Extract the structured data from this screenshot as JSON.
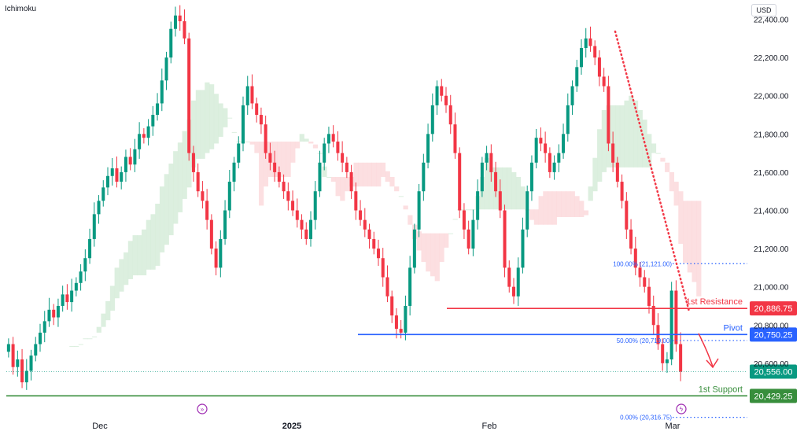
{
  "header": {
    "indicator": "Ichimoku",
    "currency": "USD"
  },
  "colors": {
    "up": "#089981",
    "down": "#f23645",
    "cloud_bull": "#d6ecd9",
    "cloud_bear": "#fbd9dc",
    "resistance": "#f23645",
    "pivot": "#2962ff",
    "support": "#388e3c",
    "fib": "#2962ff",
    "trend": "#f23645",
    "price": "#089981",
    "axis": "#131722"
  },
  "chart_data": {
    "type": "candlestick",
    "y_axis": {
      "min": 20270,
      "max": 22460,
      "ticks": [
        20600,
        20800,
        21000,
        21200,
        21400,
        21600,
        21800,
        22000,
        22200,
        22400
      ],
      "tick_labels": [
        "20,600.00",
        "20,800.00",
        "21,000.00",
        "21,200.00",
        "21,400.00",
        "21,600.00",
        "21,800.00",
        "22,000.00",
        "22,200.00",
        "22,400.00"
      ]
    },
    "x_axis": {
      "labels": [
        "Dec",
        "2025",
        "Feb",
        "Mar"
      ]
    },
    "grid": false,
    "levels": [
      {
        "name": "1st Resistance",
        "value": 20886.75,
        "label": "20,886.75",
        "color": "#f23645"
      },
      {
        "name": "Pivot",
        "value": 20750.25,
        "label": "20,750.25",
        "color": "#2962ff"
      },
      {
        "name": "1st Support",
        "value": 20429.25,
        "label": "20,429.25",
        "color": "#388e3c"
      }
    ],
    "last_price": {
      "value": 20556.0,
      "label": "20,556.00"
    },
    "fibonacci": [
      {
        "label": "100.00% (21,121.00)",
        "value": 21121.0
      },
      {
        "label": "50.00% (20,719.00)",
        "value": 20719.0
      },
      {
        "label": "0.00% (20,316.75)",
        "value": 20316.75
      }
    ],
    "closes": [
      20700,
      20580,
      20620,
      20500,
      20560,
      20640,
      20700,
      20760,
      20820,
      20880,
      20840,
      20900,
      20960,
      20920,
      20980,
      21020,
      21080,
      21150,
      21250,
      21380,
      21450,
      21520,
      21580,
      21620,
      21550,
      21600,
      21680,
      21640,
      21720,
      21800,
      21780,
      21840,
      21900,
      21960,
      22080,
      22200,
      22350,
      22420,
      22390,
      22300,
      21700,
      21600,
      21500,
      21450,
      21350,
      21200,
      21100,
      21250,
      21400,
      21550,
      21650,
      21750,
      21950,
      22050,
      21960,
      21900,
      21850,
      21700,
      21650,
      21600,
      21550,
      21500,
      21450,
      21400,
      21350,
      21300,
      21250,
      21350,
      21500,
      21650,
      21750,
      21800,
      21760,
      21700,
      21650,
      21600,
      21500,
      21400,
      21350,
      21300,
      21250,
      21200,
      21150,
      21050,
      20950,
      20850,
      20780,
      20760,
      20900,
      21100,
      21300,
      21500,
      21650,
      21800,
      21950,
      22050,
      22000,
      21950,
      21850,
      21700,
      21400,
      21300,
      21200,
      21350,
      21500,
      21650,
      21700,
      21600,
      21500,
      21400,
      21100,
      21000,
      20950,
      21100,
      21300,
      21500,
      21650,
      21780,
      21750,
      21700,
      21600,
      21650,
      21700,
      21800,
      21950,
      22050,
      22150,
      22250,
      22300,
      22260,
      22200,
      22100,
      22050,
      21750,
      21650,
      21550,
      21450,
      21300,
      21200,
      21100,
      21050,
      21000,
      20900,
      20800,
      20700,
      20600,
      20620,
      20980,
      20700,
      20556
    ]
  }
}
